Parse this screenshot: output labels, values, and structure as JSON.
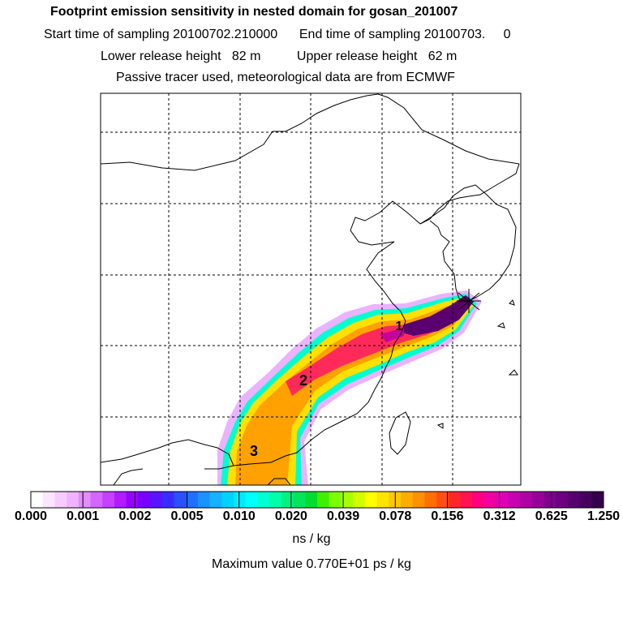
{
  "header": {
    "title": "Footprint emission sensitivity in nested domain for gosan_201007",
    "sampling": "Start time of sampling 20100702.210000      End time of sampling 20100703.     0",
    "release": "Lower release height   82 m          Upper release height   62 m",
    "tracer": "Passive tracer used, meteorological data are from ECMWF"
  },
  "map": {
    "markers": [
      {
        "label": "1"
      },
      {
        "label": "2"
      },
      {
        "label": "3"
      }
    ],
    "receptor_icon": "star-icon"
  },
  "colorbar": {
    "tick_labels": [
      "0.000",
      "0.001",
      "0.002",
      "0.005",
      "0.010",
      "0.020",
      "0.039",
      "0.078",
      "0.156",
      "0.312",
      "0.625",
      "1.250"
    ],
    "colors": [
      "#ffffff",
      "#fce6ff",
      "#f6ccff",
      "#f0b3ff",
      "#e28cff",
      "#d466ff",
      "#c640ff",
      "#b01cff",
      "#9a00ff",
      "#7a00ff",
      "#5a14ff",
      "#3a2cff",
      "#2a50ff",
      "#2070ff",
      "#1a92ff",
      "#14b2ff",
      "#00d2ff",
      "#00eaff",
      "#00ffff",
      "#00ffd2",
      "#00ffaa",
      "#00f282",
      "#00e55a",
      "#00dc30",
      "#40f000",
      "#7aff00",
      "#a8ff00",
      "#d2ff00",
      "#ffff00",
      "#ffe400",
      "#ffc800",
      "#ffac00",
      "#ff9000",
      "#ff7000",
      "#ff5014",
      "#ff2828",
      "#ff1450",
      "#ff0080",
      "#f000a0",
      "#e000b8",
      "#c800b4",
      "#b000a8",
      "#98009c",
      "#800090",
      "#6c0080",
      "#580070",
      "#460060",
      "#34004c"
    ],
    "unit": "ns / kg"
  },
  "footer": {
    "max_value": "Maximum value  0.770E+01 ps / kg"
  }
}
